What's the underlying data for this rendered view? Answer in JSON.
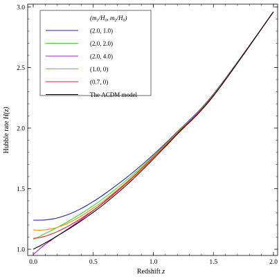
{
  "chart_data": {
    "type": "line",
    "xlabel": "Redshift",
    "xlabel_var": "z",
    "ylabel": "Hubble rate",
    "ylabel_var": "H(z)",
    "xlim": [
      0.0,
      2.0
    ],
    "ylim": [
      0.96,
      3.0
    ],
    "xticks": [
      "0.0",
      "0.5",
      "1.0",
      "1.5",
      "2.0"
    ],
    "yticks": [
      "1.0",
      "1.5",
      "2.0",
      "2.5",
      "3.0"
    ],
    "grid": false,
    "legend_position": "top-left",
    "legend_title": "(m1/H0, m2/H0)",
    "series": [
      {
        "name": "(2.0, 1.0)",
        "color": "#1f1fb4",
        "x": [
          0,
          0.05,
          0.1,
          0.15,
          0.2,
          0.3,
          0.4,
          0.5,
          0.6,
          0.8,
          1.0,
          1.2,
          1.5,
          2.0
        ],
        "y": [
          1.24,
          1.24,
          1.242,
          1.248,
          1.258,
          1.29,
          1.336,
          1.394,
          1.46,
          1.61,
          1.78,
          1.97,
          2.28,
          2.96
        ]
      },
      {
        "name": "(2.0, 2.0)",
        "color": "#30e030",
        "x": [
          0,
          0.05,
          0.1,
          0.15,
          0.2,
          0.3,
          0.4,
          0.5,
          0.6,
          0.8,
          1.0,
          1.2,
          1.5,
          2.0
        ],
        "y": [
          1.08,
          1.105,
          1.13,
          1.155,
          1.18,
          1.235,
          1.295,
          1.36,
          1.43,
          1.59,
          1.77,
          1.965,
          2.275,
          2.96
        ]
      },
      {
        "name": "(2.0, 4.0)",
        "color": "#a020c8",
        "x": [
          0,
          0.05,
          0.1,
          0.15,
          0.2,
          0.3,
          0.4,
          0.5,
          0.6,
          0.8,
          1.0,
          1.2,
          1.5,
          2.0
        ],
        "y": [
          0.955,
          1.0,
          1.04,
          1.075,
          1.11,
          1.175,
          1.245,
          1.32,
          1.4,
          1.57,
          1.76,
          1.96,
          2.27,
          2.96
        ]
      },
      {
        "name": "(1.0, 0)",
        "color": "#ff8c00",
        "x": [
          0,
          0.05,
          0.1,
          0.15,
          0.2,
          0.3,
          0.4,
          0.5,
          0.6,
          0.8,
          1.0,
          1.2,
          1.5,
          2.0
        ],
        "y": [
          1.16,
          1.157,
          1.16,
          1.168,
          1.18,
          1.22,
          1.275,
          1.34,
          1.41,
          1.575,
          1.765,
          1.962,
          2.272,
          2.96
        ]
      },
      {
        "name": "(0.7, 0)",
        "color": "#e82020",
        "x": [
          0,
          0.05,
          0.1,
          0.15,
          0.2,
          0.3,
          0.4,
          0.5,
          0.6,
          0.8,
          1.0,
          1.2,
          1.5,
          2.0
        ],
        "y": [
          1.09,
          1.095,
          1.108,
          1.125,
          1.145,
          1.195,
          1.255,
          1.322,
          1.395,
          1.565,
          1.757,
          1.957,
          2.27,
          2.96
        ]
      },
      {
        "name": "The ΛCDM model",
        "color": "#000000",
        "x": [
          0,
          0.05,
          0.1,
          0.15,
          0.2,
          0.3,
          0.4,
          0.5,
          0.6,
          0.8,
          1.0,
          1.2,
          1.5,
          2.0
        ],
        "y": [
          1.0,
          1.025,
          1.052,
          1.08,
          1.11,
          1.17,
          1.235,
          1.305,
          1.38,
          1.55,
          1.745,
          1.95,
          2.265,
          2.96
        ]
      }
    ]
  }
}
